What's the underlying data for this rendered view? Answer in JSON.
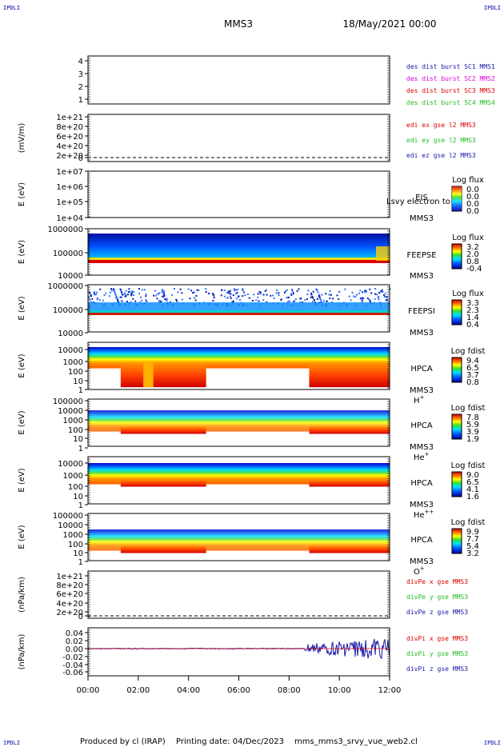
{
  "header": {
    "corner_left_top": "IPDLI",
    "corner_right_top": "IPDLI",
    "corner_left_bottom": "IPDLI",
    "corner_right_bottom": "IPDLI",
    "spacecraft": "MMS3",
    "date": "18/May/2021 00:00"
  },
  "footer": {
    "produced_by": "Produced by cl (IRAP)",
    "printing_date": "Printing date: 04/Dec/2023",
    "filename": "mms_mms3_srvy_vue_web2.cl"
  },
  "colors": {
    "blue": "#1a1aa8",
    "magenta": "#dd00dd",
    "red": "#dd0000",
    "green": "#22bb22",
    "corner": "#0000aa"
  },
  "chart_data": [
    {
      "id": "p1",
      "type": "line",
      "yticks": [
        "4",
        "3",
        "2",
        "1"
      ],
      "legend": [
        {
          "text": "des dist burst SC1 MMS1",
          "color": "#1a1aa8"
        },
        {
          "text": "des dist burst SC2 MMS2",
          "color": "#dd00dd"
        },
        {
          "text": "des dist burst SC3 MMS3",
          "color": "#dd0000"
        },
        {
          "text": "des dist burst SC4 MMS4",
          "color": "#22bb22"
        }
      ]
    },
    {
      "id": "p2",
      "type": "line",
      "ylabel": "(mV/m)",
      "yticks": [
        "1e+21",
        "8e+20",
        "6e+20",
        "4e+20",
        "2e+20",
        "0"
      ],
      "legend": [
        {
          "text": "edi ex gse l2 MMS3",
          "color": "#dd0000"
        },
        {
          "text": "edi ey gse l2 MMS3",
          "color": "#22bb22"
        },
        {
          "text": "edi ez gse l2 MMS3",
          "color": "#1a1aa8"
        }
      ]
    },
    {
      "id": "p3",
      "type": "heatmap",
      "ylabel": "E (eV)",
      "yticks": [
        "1e+07",
        "1e+06",
        "1e+05",
        "1e+04"
      ],
      "instrument": [
        "EIS",
        "MMS3"
      ],
      "overlay": "Lsvy electron to",
      "colorbar": {
        "title": "Log flux",
        "ticks": [
          "0.0",
          "0.0",
          "0.0",
          "0.0"
        ]
      }
    },
    {
      "id": "p4",
      "type": "heatmap",
      "ylabel": "E (eV)",
      "yticks": [
        "1000000",
        "100000",
        "10000"
      ],
      "instrument": [
        "FEEPSE",
        "MMS3"
      ],
      "colorbar": {
        "title": "Log flux",
        "ticks": [
          "3.2",
          "2.0",
          "0.8",
          "-0.4"
        ]
      }
    },
    {
      "id": "p5",
      "type": "heatmap",
      "ylabel": "E (eV)",
      "yticks": [
        "1000000",
        "100000",
        "10000"
      ],
      "instrument": [
        "FEEPSI",
        "MMS3"
      ],
      "colorbar": {
        "title": "Log flux",
        "ticks": [
          "3.3",
          "2.3",
          "1.4",
          "0.4"
        ]
      }
    },
    {
      "id": "p6",
      "type": "heatmap",
      "ylabel": "E (eV)",
      "yticks": [
        "10000",
        "1000",
        "100",
        "10",
        "1"
      ],
      "instrument": [
        "HPCA",
        "MMS3"
      ],
      "ion": "H",
      "charge": "+",
      "colorbar": {
        "title": "Log fdist",
        "ticks": [
          "9.4",
          "6.5",
          "3.7",
          "0.8"
        ]
      }
    },
    {
      "id": "p7",
      "type": "heatmap",
      "ylabel": "E (eV)",
      "yticks": [
        "100000",
        "10000",
        "1000",
        "100",
        "10",
        "1"
      ],
      "instrument": [
        "HPCA",
        "MMS3"
      ],
      "ion": "He",
      "charge": "+",
      "colorbar": {
        "title": "Log fdist",
        "ticks": [
          "7.8",
          "5.9",
          "3.9",
          "1.9"
        ]
      }
    },
    {
      "id": "p8",
      "type": "heatmap",
      "ylabel": "E (eV)",
      "yticks": [
        "10000",
        "1000",
        "100",
        "10",
        "1"
      ],
      "instrument": [
        "HPCA",
        "MMS3"
      ],
      "ion": "He",
      "charge": "++",
      "colorbar": {
        "title": "Log fdist",
        "ticks": [
          "9.0",
          "6.5",
          "4.1",
          "1.6"
        ]
      }
    },
    {
      "id": "p9",
      "type": "heatmap",
      "ylabel": "E (eV)",
      "yticks": [
        "100000",
        "10000",
        "1000",
        "100",
        "10",
        "1"
      ],
      "instrument": [
        "HPCA",
        "MMS3"
      ],
      "ion": "O",
      "charge": "+",
      "colorbar": {
        "title": "Log fdist",
        "ticks": [
          "9.9",
          "7.7",
          "5.4",
          "3.2"
        ]
      }
    },
    {
      "id": "p10",
      "type": "line",
      "ylabel": "(nPa/km)",
      "yticks": [
        "1e+21",
        "8e+20",
        "6e+20",
        "4e+20",
        "2e+20",
        "0"
      ],
      "legend": [
        {
          "text": "divPe x gse MMS3",
          "color": "#dd0000"
        },
        {
          "text": "divPe y gse MMS3",
          "color": "#22bb22"
        },
        {
          "text": "divPe z gse MMS3",
          "color": "#1a1aa8"
        }
      ]
    },
    {
      "id": "p11",
      "type": "line",
      "ylabel": "(nPa/km)",
      "yticks": [
        "0.04",
        "0.02",
        "0.00",
        "-0.02",
        "-0.04",
        "-0.06"
      ],
      "legend": [
        {
          "text": "divPi x gse MMS3",
          "color": "#dd0000"
        },
        {
          "text": "divPi y gse MMS3",
          "color": "#22bb22"
        },
        {
          "text": "divPi z gse MMS3",
          "color": "#1a1aa8"
        }
      ]
    }
  ],
  "x_axis": {
    "ticks": [
      "00:00",
      "02:00",
      "04:00",
      "06:00",
      "08:00",
      "10:00",
      "12:00"
    ]
  }
}
